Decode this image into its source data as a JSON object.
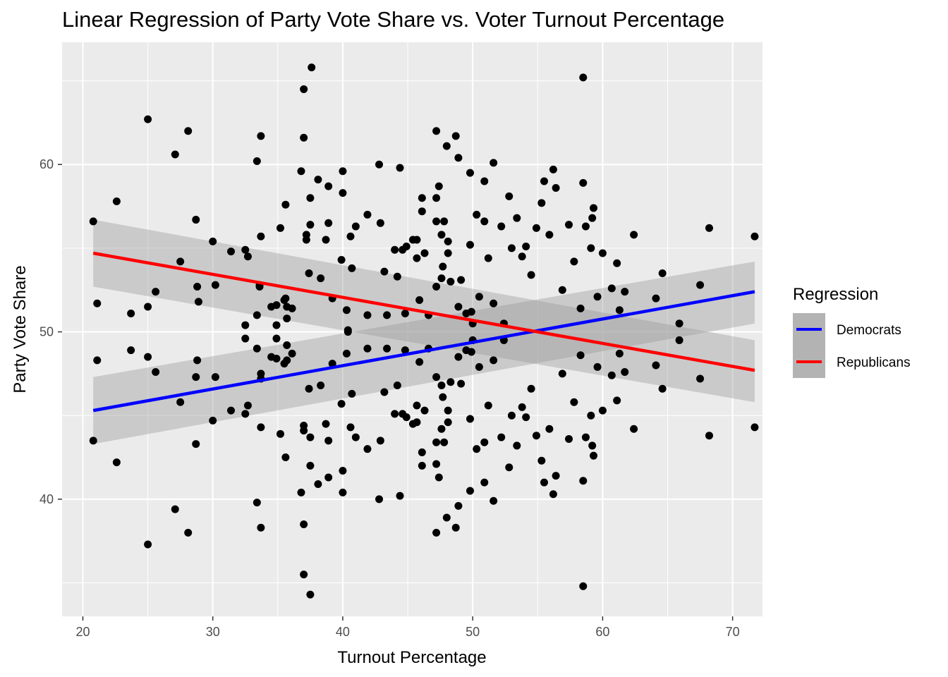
{
  "chart_data": {
    "type": "scatter",
    "title": "Linear Regression of Party Vote Share vs. Voter Turnout Percentage",
    "xlabel": "Turnout Percentage",
    "ylabel": "Party Vote Share",
    "xlim": [
      18.4,
      72.3
    ],
    "ylim": [
      33.0,
      67.3
    ],
    "x_ticks": [
      20,
      30,
      40,
      50,
      60,
      70
    ],
    "y_ticks": [
      40,
      50,
      60
    ],
    "grid": true,
    "legend": {
      "title": "Regression",
      "placement": "right",
      "entries": [
        {
          "label": "Democrats",
          "color": "#0000ff"
        },
        {
          "label": "Republicans",
          "color": "#ff0000"
        }
      ]
    },
    "colors": {
      "panel": "#ebebeb",
      "grid": "#ffffff",
      "points": "#000000",
      "ribbon": "#999999",
      "democrats": "#0000ff",
      "republicans": "#ff0000"
    },
    "regression_lines": [
      {
        "name": "Democrats",
        "x_start": 20.8,
        "x_end": 71.7,
        "y_start": 45.3,
        "y_end": 52.4,
        "ci_lower": [
          43.3,
          50.5
        ],
        "ci_upper": [
          47.3,
          54.2
        ]
      },
      {
        "name": "Republicans",
        "x_start": 20.8,
        "x_end": 71.7,
        "y_start": 54.7,
        "y_end": 47.7,
        "ci_lower": [
          52.7,
          45.8
        ],
        "ci_upper": [
          56.7,
          49.5
        ]
      }
    ],
    "points": [
      [
        20.8,
        56.6
      ],
      [
        21.1,
        51.7
      ],
      [
        21.1,
        48.3
      ],
      [
        20.8,
        43.5
      ],
      [
        22.6,
        57.8
      ],
      [
        22.6,
        42.2
      ],
      [
        23.7,
        51.1
      ],
      [
        23.7,
        48.9
      ],
      [
        25.0,
        62.7
      ],
      [
        25.0,
        51.5
      ],
      [
        25.0,
        48.5
      ],
      [
        25.0,
        37.3
      ],
      [
        25.6,
        52.4
      ],
      [
        25.6,
        47.6
      ],
      [
        27.1,
        60.6
      ],
      [
        27.1,
        39.4
      ],
      [
        27.5,
        54.2
      ],
      [
        27.5,
        45.8
      ],
      [
        28.1,
        62.0
      ],
      [
        28.1,
        38.0
      ],
      [
        28.7,
        56.7
      ],
      [
        28.8,
        52.7
      ],
      [
        28.9,
        51.8
      ],
      [
        28.8,
        48.3
      ],
      [
        28.7,
        47.3
      ],
      [
        28.7,
        43.3
      ],
      [
        30.0,
        55.4
      ],
      [
        30.0,
        44.7
      ],
      [
        30.2,
        52.8
      ],
      [
        30.2,
        47.3
      ],
      [
        31.4,
        54.8
      ],
      [
        31.4,
        45.3
      ],
      [
        32.5,
        54.9
      ],
      [
        32.5,
        50.4
      ],
      [
        32.5,
        49.6
      ],
      [
        32.5,
        45.1
      ],
      [
        32.7,
        54.5
      ],
      [
        32.7,
        45.6
      ],
      [
        33.4,
        60.2
      ],
      [
        33.4,
        51.0
      ],
      [
        33.4,
        49.0
      ],
      [
        33.4,
        39.8
      ],
      [
        33.7,
        61.7
      ],
      [
        33.7,
        55.7
      ],
      [
        33.6,
        52.7
      ],
      [
        33.6,
        52.8
      ],
      [
        33.7,
        47.5
      ],
      [
        33.7,
        47.2
      ],
      [
        33.7,
        44.3
      ],
      [
        33.7,
        38.3
      ],
      [
        34.5,
        51.5
      ],
      [
        34.5,
        48.5
      ],
      [
        34.9,
        51.6
      ],
      [
        34.9,
        50.4
      ],
      [
        34.9,
        49.6
      ],
      [
        34.9,
        48.4
      ],
      [
        35.2,
        56.2
      ],
      [
        35.2,
        43.9
      ],
      [
        35.5,
        51.9
      ],
      [
        35.5,
        48.1
      ],
      [
        35.6,
        57.6
      ],
      [
        35.6,
        52.0
      ],
      [
        35.6,
        42.5
      ],
      [
        35.7,
        51.5
      ],
      [
        35.7,
        50.8
      ],
      [
        35.7,
        49.2
      ],
      [
        35.7,
        48.3
      ],
      [
        36.1,
        51.4
      ],
      [
        36.1,
        48.7
      ],
      [
        36.8,
        59.6
      ],
      [
        36.8,
        40.4
      ],
      [
        37.0,
        64.5
      ],
      [
        37.0,
        61.6
      ],
      [
        37.0,
        44.4
      ],
      [
        37.0,
        44.1
      ],
      [
        37.0,
        38.5
      ],
      [
        37.0,
        35.5
      ],
      [
        37.2,
        55.8
      ],
      [
        37.2,
        55.5
      ],
      [
        37.4,
        53.5
      ],
      [
        37.4,
        46.6
      ],
      [
        37.5,
        58.0
      ],
      [
        37.5,
        56.4
      ],
      [
        37.5,
        43.7
      ],
      [
        37.5,
        42.0
      ],
      [
        37.6,
        65.8
      ],
      [
        37.5,
        34.3
      ],
      [
        38.1,
        59.1
      ],
      [
        38.1,
        40.9
      ],
      [
        38.3,
        53.2
      ],
      [
        38.3,
        46.8
      ],
      [
        38.7,
        55.5
      ],
      [
        38.7,
        44.5
      ],
      [
        38.9,
        58.7
      ],
      [
        38.9,
        56.5
      ],
      [
        38.9,
        43.5
      ],
      [
        38.9,
        41.3
      ],
      [
        39.2,
        52.0
      ],
      [
        39.2,
        48.1
      ],
      [
        40.0,
        59.6
      ],
      [
        40.0,
        58.3
      ],
      [
        39.9,
        54.3
      ],
      [
        39.9,
        45.7
      ],
      [
        40.0,
        41.7
      ],
      [
        40.0,
        40.4
      ],
      [
        40.3,
        51.3
      ],
      [
        40.4,
        50.0
      ],
      [
        40.4,
        50.1
      ],
      [
        40.3,
        48.7
      ],
      [
        40.7,
        53.8
      ],
      [
        40.7,
        46.3
      ],
      [
        40.6,
        55.7
      ],
      [
        40.6,
        44.3
      ],
      [
        41.0,
        56.3
      ],
      [
        41.0,
        43.7
      ],
      [
        41.9,
        57.0
      ],
      [
        41.9,
        51.0
      ],
      [
        41.9,
        49.0
      ],
      [
        41.9,
        43.0
      ],
      [
        42.8,
        60.0
      ],
      [
        42.8,
        40.0
      ],
      [
        42.9,
        56.5
      ],
      [
        42.9,
        43.5
      ],
      [
        43.4,
        51.0
      ],
      [
        43.4,
        49.0
      ],
      [
        43.2,
        53.6
      ],
      [
        43.2,
        46.4
      ],
      [
        44.0,
        54.9
      ],
      [
        44.0,
        45.1
      ],
      [
        44.2,
        53.3
      ],
      [
        44.2,
        46.8
      ],
      [
        44.4,
        59.8
      ],
      [
        44.4,
        40.2
      ],
      [
        44.6,
        54.9
      ],
      [
        44.6,
        45.1
      ],
      [
        44.8,
        51.1
      ],
      [
        44.8,
        48.9
      ],
      [
        44.9,
        55.1
      ],
      [
        44.9,
        44.9
      ],
      [
        45.4,
        55.5
      ],
      [
        45.4,
        44.5
      ],
      [
        45.7,
        55.5
      ],
      [
        45.7,
        54.4
      ],
      [
        45.7,
        45.6
      ],
      [
        45.7,
        44.6
      ],
      [
        45.9,
        51.9
      ],
      [
        45.9,
        48.2
      ],
      [
        46.1,
        58.0
      ],
      [
        46.1,
        57.2
      ],
      [
        46.1,
        42.8
      ],
      [
        46.1,
        42.0
      ],
      [
        46.3,
        54.7
      ],
      [
        46.3,
        45.3
      ],
      [
        46.6,
        51.0
      ],
      [
        46.6,
        49.0
      ],
      [
        47.2,
        62.0
      ],
      [
        47.2,
        58.0
      ],
      [
        47.2,
        56.6
      ],
      [
        47.2,
        52.7
      ],
      [
        47.2,
        47.3
      ],
      [
        47.2,
        43.4
      ],
      [
        47.2,
        42.1
      ],
      [
        47.2,
        38.0
      ],
      [
        47.4,
        58.7
      ],
      [
        47.4,
        41.3
      ],
      [
        47.6,
        55.8
      ],
      [
        47.6,
        53.2
      ],
      [
        47.6,
        46.8
      ],
      [
        47.6,
        44.2
      ],
      [
        47.8,
        56.6
      ],
      [
        47.8,
        43.4
      ],
      [
        47.7,
        53.9
      ],
      [
        47.7,
        46.1
      ],
      [
        48.0,
        61.1
      ],
      [
        48.0,
        38.9
      ],
      [
        48.1,
        55.4
      ],
      [
        48.1,
        54.7
      ],
      [
        48.1,
        45.3
      ],
      [
        48.1,
        44.6
      ],
      [
        48.3,
        53.0
      ],
      [
        48.3,
        47.0
      ],
      [
        48.7,
        61.7
      ],
      [
        48.7,
        38.3
      ],
      [
        48.9,
        60.4
      ],
      [
        48.9,
        39.6
      ],
      [
        48.9,
        51.5
      ],
      [
        48.9,
        48.5
      ],
      [
        49.1,
        53.1
      ],
      [
        49.1,
        46.9
      ],
      [
        49.5,
        51.1
      ],
      [
        49.5,
        48.9
      ],
      [
        49.8,
        59.5
      ],
      [
        49.8,
        40.5
      ],
      [
        49.8,
        55.2
      ],
      [
        49.8,
        44.8
      ],
      [
        49.9,
        51.2
      ],
      [
        49.9,
        48.8
      ],
      [
        50.0,
        50.5
      ],
      [
        50.0,
        49.5
      ],
      [
        50.3,
        57.0
      ],
      [
        50.3,
        43.0
      ],
      [
        50.5,
        52.1
      ],
      [
        50.5,
        47.9
      ],
      [
        50.9,
        59.0
      ],
      [
        50.9,
        41.0
      ],
      [
        50.9,
        56.6
      ],
      [
        50.9,
        43.4
      ],
      [
        51.2,
        54.4
      ],
      [
        51.2,
        45.6
      ],
      [
        51.6,
        60.1
      ],
      [
        51.6,
        39.9
      ],
      [
        51.6,
        51.7
      ],
      [
        51.6,
        48.3
      ],
      [
        52.2,
        56.3
      ],
      [
        52.2,
        43.7
      ],
      [
        52.4,
        50.5
      ],
      [
        52.4,
        49.5
      ],
      [
        52.8,
        58.1
      ],
      [
        52.8,
        41.9
      ],
      [
        53.0,
        55.0
      ],
      [
        53.0,
        45.0
      ],
      [
        53.4,
        56.8
      ],
      [
        53.4,
        43.2
      ],
      [
        53.8,
        54.5
      ],
      [
        53.8,
        45.5
      ],
      [
        54.1,
        55.1
      ],
      [
        54.1,
        44.9
      ],
      [
        54.5,
        53.4
      ],
      [
        54.5,
        46.6
      ],
      [
        54.9,
        56.2
      ],
      [
        54.9,
        43.8
      ],
      [
        55.3,
        57.7
      ],
      [
        55.3,
        42.3
      ],
      [
        55.5,
        59.0
      ],
      [
        55.5,
        41.0
      ],
      [
        55.9,
        55.8
      ],
      [
        55.9,
        44.2
      ],
      [
        56.2,
        59.7
      ],
      [
        56.2,
        40.3
      ],
      [
        56.4,
        58.6
      ],
      [
        56.4,
        41.4
      ],
      [
        56.9,
        52.5
      ],
      [
        56.9,
        47.5
      ],
      [
        57.4,
        56.4
      ],
      [
        57.4,
        43.6
      ],
      [
        57.8,
        54.2
      ],
      [
        57.8,
        45.8
      ],
      [
        58.3,
        51.4
      ],
      [
        58.3,
        48.6
      ],
      [
        58.5,
        65.2
      ],
      [
        58.5,
        34.8
      ],
      [
        58.5,
        58.9
      ],
      [
        58.5,
        41.1
      ],
      [
        58.7,
        56.3
      ],
      [
        58.7,
        43.7
      ],
      [
        59.1,
        55.0
      ],
      [
        59.1,
        45.0
      ],
      [
        59.2,
        56.8
      ],
      [
        59.2,
        43.2
      ],
      [
        59.3,
        57.4
      ],
      [
        59.3,
        42.6
      ],
      [
        59.6,
        52.1
      ],
      [
        59.6,
        47.9
      ],
      [
        60.0,
        54.7
      ],
      [
        60.0,
        45.3
      ],
      [
        60.7,
        52.6
      ],
      [
        60.7,
        47.4
      ],
      [
        61.1,
        54.1
      ],
      [
        61.1,
        45.9
      ],
      [
        61.3,
        51.3
      ],
      [
        61.3,
        48.7
      ],
      [
        61.7,
        52.4
      ],
      [
        61.7,
        47.6
      ],
      [
        62.4,
        55.8
      ],
      [
        62.4,
        44.2
      ],
      [
        64.1,
        52.0
      ],
      [
        64.1,
        48.0
      ],
      [
        64.6,
        53.5
      ],
      [
        64.6,
        46.6
      ],
      [
        65.9,
        50.5
      ],
      [
        65.9,
        49.5
      ],
      [
        67.5,
        52.8
      ],
      [
        67.5,
        47.2
      ],
      [
        68.2,
        56.2
      ],
      [
        68.2,
        43.8
      ],
      [
        71.7,
        55.7
      ],
      [
        71.7,
        44.3
      ]
    ]
  }
}
